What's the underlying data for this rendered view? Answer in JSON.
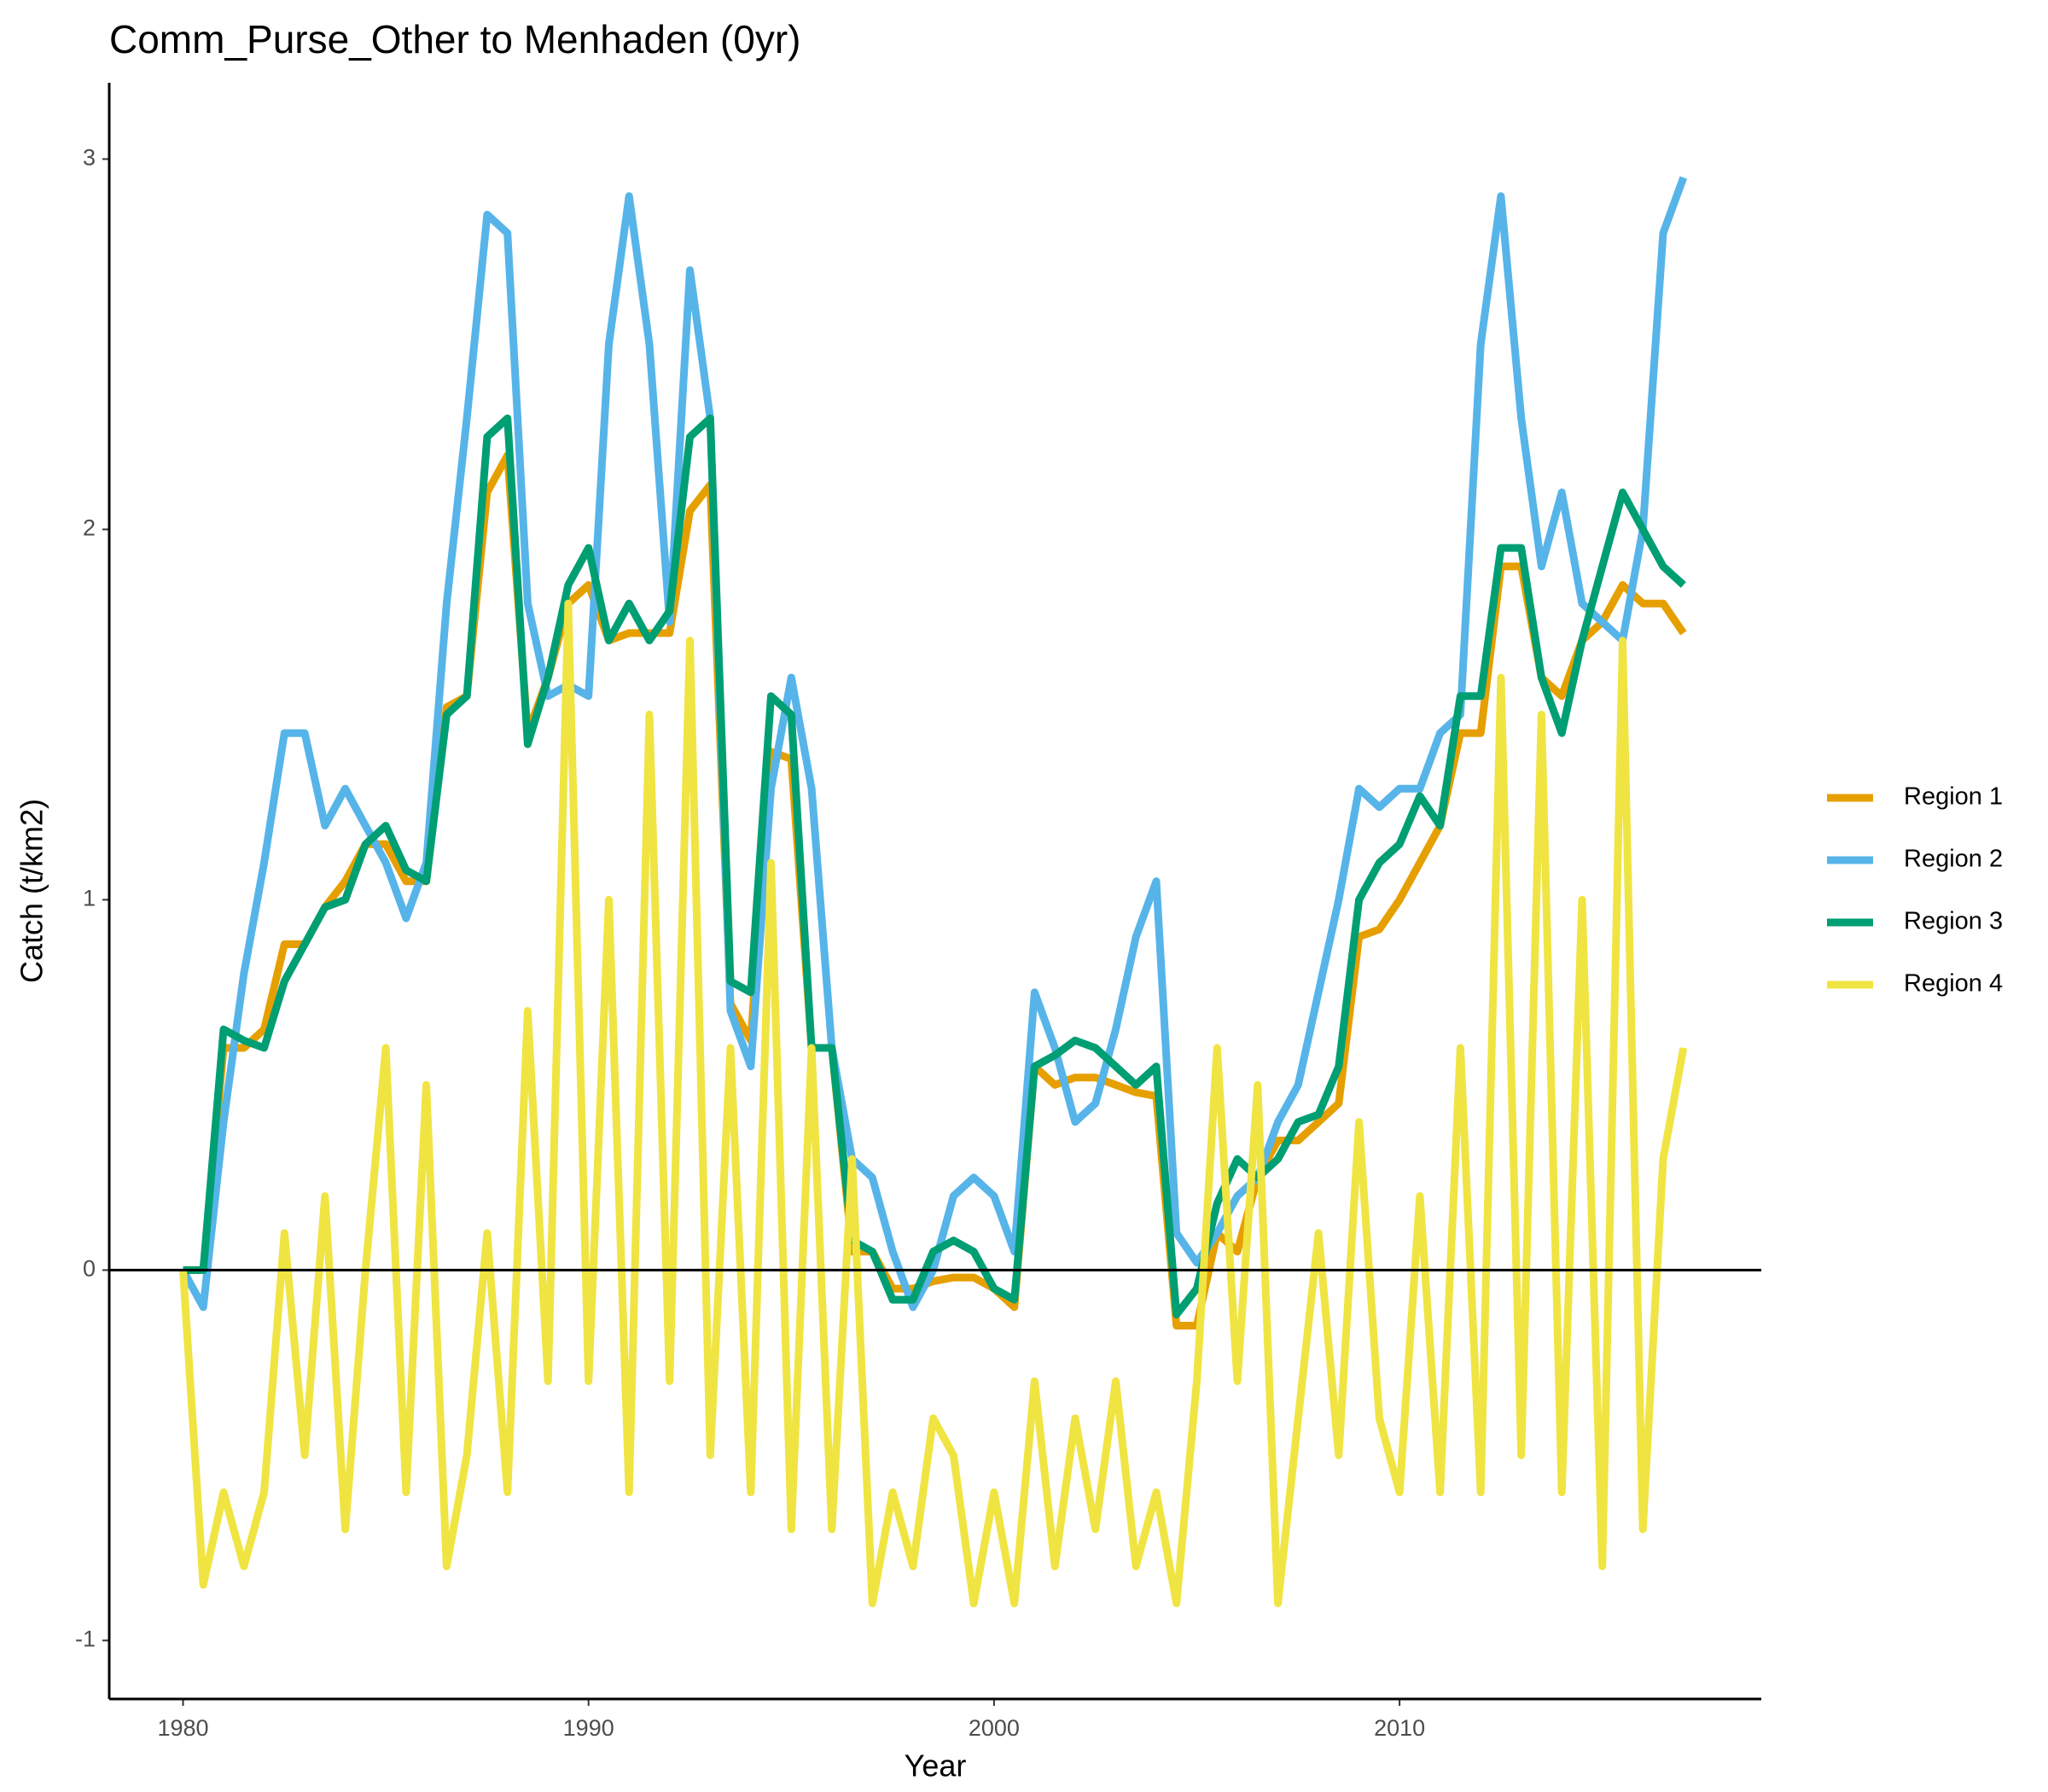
{
  "chart_data": {
    "type": "line",
    "title": "Comm_Purse_Other to Menhaden (0yr)",
    "x_label": "Year",
    "y_label": "Catch (t/km2)",
    "xlim": [
      1978.18,
      2018.92
    ],
    "ylim": [
      -1.158,
      3.206
    ],
    "xticks": [
      1980,
      1990,
      2000,
      2010
    ],
    "yticks": [
      -1,
      0,
      1,
      2,
      3
    ],
    "hline": 0,
    "legend": "right",
    "x": [
      1980,
      1980.5,
      1981,
      1981.5,
      1982,
      1982.5,
      1983,
      1983.5,
      1984,
      1984.5,
      1985,
      1985.5,
      1986,
      1986.5,
      1987,
      1987.5,
      1988,
      1988.5,
      1989,
      1989.5,
      1990,
      1990.5,
      1991,
      1991.5,
      1992,
      1992.5,
      1993,
      1993.5,
      1994,
      1994.5,
      1995,
      1995.5,
      1996,
      1996.5,
      1997,
      1997.5,
      1998,
      1998.5,
      1999,
      1999.5,
      2000,
      2000.5,
      2001,
      2001.5,
      2002,
      2002.5,
      2003,
      2003.5,
      2004,
      2004.5,
      2005,
      2005.5,
      2006,
      2006.5,
      2007,
      2007.5,
      2008,
      2008.5,
      2009,
      2009.5,
      2010,
      2010.5,
      2011,
      2011.5,
      2012,
      2012.5,
      2013,
      2013.5,
      2014,
      2014.5,
      2015,
      2015.5,
      2016,
      2016.5,
      2017
    ],
    "series": [
      {
        "name": "Region 1",
        "color": "#E69F00",
        "values": [
          0,
          0,
          0.6,
          0.6,
          0.65,
          0.88,
          0.88,
          0.98,
          1.05,
          1.15,
          1.15,
          1.05,
          1.05,
          1.52,
          1.55,
          2.1,
          2.2,
          1.45,
          1.6,
          1.8,
          1.85,
          1.7,
          1.72,
          1.72,
          1.72,
          2.05,
          2.12,
          0.72,
          0.62,
          1.4,
          1.38,
          0.6,
          0.6,
          0.05,
          0.05,
          -0.05,
          -0.05,
          -0.03,
          -0.02,
          -0.02,
          -0.05,
          -0.1,
          0.55,
          0.5,
          0.52,
          0.52,
          0.5,
          0.48,
          0.47,
          -0.15,
          -0.15,
          0.1,
          0.05,
          0.25,
          0.35,
          0.35,
          0.4,
          0.45,
          0.9,
          0.92,
          1.0,
          1.1,
          1.2,
          1.45,
          1.45,
          1.9,
          1.9,
          1.6,
          1.55,
          1.7,
          1.75,
          1.85,
          1.8,
          1.8,
          1.72
        ]
      },
      {
        "name": "Region 2",
        "color": "#56B4E9",
        "values": [
          0,
          -0.1,
          0.4,
          0.8,
          1.1,
          1.45,
          1.45,
          1.2,
          1.3,
          1.2,
          1.1,
          0.95,
          1.1,
          1.8,
          2.3,
          2.85,
          2.8,
          1.8,
          1.55,
          1.58,
          1.55,
          2.5,
          2.9,
          2.5,
          1.75,
          2.7,
          2.3,
          0.7,
          0.55,
          1.3,
          1.6,
          1.3,
          0.6,
          0.3,
          0.25,
          0.05,
          -0.1,
          0,
          0.2,
          0.25,
          0.2,
          0.05,
          0.75,
          0.6,
          0.4,
          0.45,
          0.65,
          0.9,
          1.05,
          0.1,
          0.02,
          0.1,
          0.2,
          0.25,
          0.4,
          0.5,
          0.75,
          1.0,
          1.3,
          1.25,
          1.3,
          1.3,
          1.45,
          1.5,
          2.5,
          2.9,
          2.3,
          1.9,
          2.1,
          1.8,
          1.75,
          1.7,
          2.0,
          2.8,
          2.95
        ]
      },
      {
        "name": "Region 3",
        "color": "#009E73",
        "values": [
          0,
          0,
          0.65,
          0.62,
          0.6,
          0.78,
          0.88,
          0.98,
          1.0,
          1.15,
          1.2,
          1.08,
          1.05,
          1.5,
          1.55,
          2.25,
          2.3,
          1.42,
          1.6,
          1.85,
          1.95,
          1.7,
          1.8,
          1.7,
          1.78,
          2.25,
          2.3,
          0.78,
          0.75,
          1.55,
          1.5,
          0.6,
          0.6,
          0.08,
          0.05,
          -0.08,
          -0.08,
          0.05,
          0.08,
          0.05,
          -0.05,
          -0.08,
          0.55,
          0.58,
          0.62,
          0.6,
          0.55,
          0.5,
          0.55,
          -0.12,
          -0.05,
          0.18,
          0.3,
          0.25,
          0.3,
          0.4,
          0.42,
          0.55,
          1.0,
          1.1,
          1.15,
          1.28,
          1.2,
          1.55,
          1.55,
          1.95,
          1.95,
          1.6,
          1.45,
          1.7,
          1.9,
          2.1,
          2.0,
          1.9,
          1.85
        ]
      },
      {
        "name": "Region 4",
        "color": "#F0E442",
        "values": [
          0,
          -0.85,
          -0.6,
          -0.8,
          -0.6,
          0.1,
          -0.5,
          0.2,
          -0.7,
          0.0,
          0.6,
          -0.6,
          0.5,
          -0.8,
          -0.5,
          0.1,
          -0.6,
          0.7,
          -0.3,
          1.8,
          -0.3,
          1.0,
          -0.6,
          1.5,
          -0.3,
          1.7,
          -0.5,
          0.6,
          -0.6,
          1.1,
          -0.7,
          0.6,
          -0.7,
          0.3,
          -0.9,
          -0.6,
          -0.8,
          -0.4,
          -0.5,
          -0.9,
          -0.6,
          -0.9,
          -0.3,
          -0.8,
          -0.4,
          -0.7,
          -0.3,
          -0.8,
          -0.6,
          -0.9,
          -0.3,
          0.6,
          -0.3,
          0.5,
          -0.9,
          -0.4,
          0.1,
          -0.5,
          0.4,
          -0.4,
          -0.6,
          0.2,
          -0.6,
          0.6,
          -0.6,
          1.6,
          -0.5,
          1.5,
          -0.6,
          1.0,
          -0.8,
          1.7,
          -0.7,
          0.3,
          0.6
        ]
      }
    ]
  }
}
